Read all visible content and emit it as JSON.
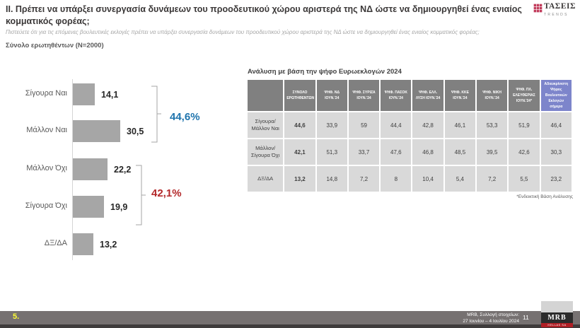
{
  "slide": {
    "title": "II. Πρέπει να υπάρξει συνεργασία δυνάμεων του προοδευτικού χώρου αριστερά της ΝΔ ώστε να δημιουργηθεί ένας ενιαίος κομματικός φορέας;",
    "subtitle": "Πιστεύετε ότι για τις επόμενες βουλευτικές εκλογές πρέπει να υπάρξει συνεργασία δυνάμεων του προοδευτικού χώρου αριστερά της ΝΔ ώστε να δημιουργηθεί ένας ενιαίος κομματικός φορέας;",
    "base": "Σύνολο ερωτηθέντων (N=2000)"
  },
  "logo": {
    "name": "ΤΑΣΕΙΣ",
    "sub": "TRENDS"
  },
  "chart_data": {
    "type": "bar",
    "orientation": "horizontal",
    "title": "",
    "categories": [
      "Σίγουρα Ναι",
      "Μάλλον Ναι",
      "Μάλλον Όχι",
      "Σίγουρα Όχι",
      "ΔΞ/ΔΑ"
    ],
    "values": [
      14.1,
      30.5,
      22.2,
      19.9,
      13.2
    ],
    "value_labels": [
      "14,1",
      "30,5",
      "22,2",
      "19,9",
      "13,2"
    ],
    "xlim": [
      0,
      35
    ],
    "bar_color": "#a6a6a6",
    "grid": false,
    "groups": [
      {
        "label": "44,6%",
        "bars": [
          0,
          1
        ],
        "color": "#1f74ad"
      },
      {
        "label": "42,1%",
        "bars": [
          2,
          3
        ],
        "color": "#b3282a"
      }
    ]
  },
  "table": {
    "title": "Ανάλυση με βάση την ψήφο Ευρωεκλογών 2024",
    "headers": [
      "",
      "ΣΥΝΟΛΟ ΕΡΩΤΗΘΕΝΤΩΝ",
      "ΨΗΦ. ΝΔ ΙΟΥΝ.'24",
      "ΨΗΦ. ΣΥΡΙΖΑ ΙΟΥΝ.'24",
      "ΨΗΦ. ΠΑΣΟΚ ΙΟΥΝ.'24",
      "ΨΗΦ. ΕΛΛ. ΛΥΣΗ ΙΟΥΝ.'24",
      "ΨΗΦ. ΚΚΕ ΙΟΥΝ.'24",
      "ΨΗΦ. ΝΙΚΗ ΙΟΥΝ.'24",
      "ΨΗΦ. ΠΛ. ΕΛΕΥΘΕΡΙΑΣ ΙΟΥΝ.'24*",
      "Αδιευκρίνιστη Ψήφος Βουλευτικών Εκλογών σήμερα"
    ],
    "rows": [
      {
        "label": "Σίγουρα/ Μάλλον Ναι",
        "values": [
          "44,6",
          "33,9",
          "59",
          "44,4",
          "42,8",
          "46,1",
          "53,3",
          "51,9",
          "46,4"
        ]
      },
      {
        "label": "Μάλλον/ Σίγουρα Όχι",
        "values": [
          "42,1",
          "51,3",
          "33,7",
          "47,6",
          "46,8",
          "48,5",
          "39,5",
          "42,6",
          "30,3"
        ]
      },
      {
        "label": "ΔΞ/ΔΑ",
        "values": [
          "13,2",
          "14,8",
          "7,2",
          "8",
          "10,4",
          "5,4",
          "7,2",
          "5,5",
          "23,2"
        ]
      }
    ],
    "footnote": "*Ενδεικτική Βάση Ανάλυσης"
  },
  "footer": {
    "slide_number": "5.",
    "source_line1": "MRB, Συλλογή στοιχείων:",
    "source_line2": "27 Ιουνίου – 4 Ιουλίου 2024",
    "page_number": "11",
    "mrb_logo": "MRB",
    "mrb_logo_sub": "HELLAS SA"
  },
  "colors": {
    "yes_group": "#1f74ad",
    "no_group": "#b3282a",
    "bar_gray": "#a6a6a6",
    "table_header_gray": "#808080",
    "table_cell_gray": "#d9d9d9",
    "table_header_blue": "#7d85cb",
    "footer_gray": "#767171",
    "brand_magenta": "#c13b5b",
    "slide_number_yellow": "#ffff33"
  }
}
